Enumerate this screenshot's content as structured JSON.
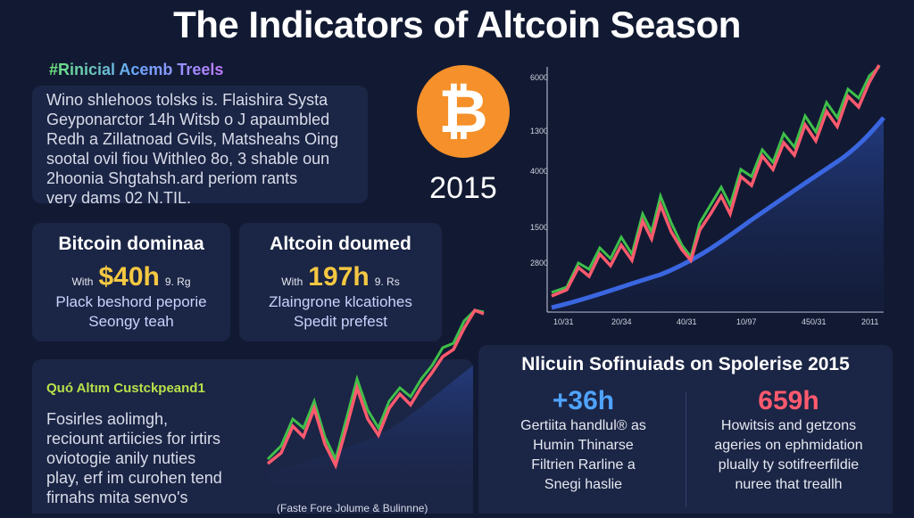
{
  "header": {
    "title": "The Indicators of Altcoin Season"
  },
  "intro": {
    "heading": "#Rinicial Acemb Treels",
    "lines": [
      "Wino shlehoos tolsks is. Flaishira Systa",
      "Geyponarctor 14h Witsb o J apaumbled",
      "Redh a Zillatnoad Gvils, Matsheahs Oing",
      "sootal ovil fiou Withleo 8o, 3 shable oun",
      "2hoonia Shgtahsh.ard periom rants",
      "very dams 02 N.TIL."
    ]
  },
  "logo": {
    "year": "2015"
  },
  "main_chart": {
    "y_labels": [
      "6000",
      "1300",
      "4000",
      "1500",
      "2800"
    ],
    "x_labels": [
      "10/31",
      "20/34",
      "40/31",
      "10/97",
      "450/31",
      "2011"
    ]
  },
  "cards": [
    {
      "title": "Bitcoin dominaa",
      "prefix": "With",
      "value": "$40h",
      "suffix": "9. Rg",
      "lines": [
        "Plack beshord peporie",
        "Seongy teah"
      ]
    },
    {
      "title": "Altcoin doumed",
      "prefix": "With",
      "value": "197h",
      "suffix": "9. Rs",
      "lines": [
        "Zlaingrone klcatiohes",
        "Spedit prefest"
      ]
    }
  ],
  "trends": {
    "heading": "Quó Altım Custckpeand1",
    "lines": [
      "Fosirles aolimgh,",
      "reciount artiicies for irtirs",
      "oviotogie anily nuties",
      "play, erf im curohen tend",
      "firnahs mita senvo's"
    ],
    "caption": "(Faste Fore Jolume & Bulinnne)"
  },
  "summary": {
    "title": "Nlicuin Sofinuiads on Spolerise 2015",
    "stats": [
      {
        "value": "+36h",
        "lines": [
          "Gertiita handlul® as",
          "Humin Thinarse",
          "Filtrien Rarline a",
          "Snegi haslie"
        ]
      },
      {
        "value": "659h",
        "lines": [
          "Howitsis and getzons",
          "ageries on ephmidation",
          "plually ty sotifreerfildie",
          "nuree that treallh"
        ]
      }
    ]
  }
}
